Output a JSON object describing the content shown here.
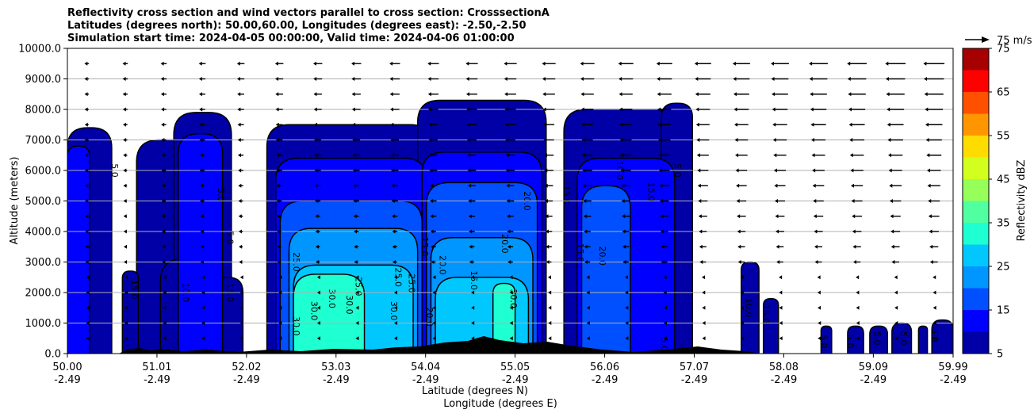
{
  "title_lines": [
    "Reflectivity cross section and wind vectors parallel to cross section: CrosssectionA",
    "Latitudes (degrees north): 50.00,60.00, Longitudes (degrees east): -2.50,-2.50",
    "Simulation start time: 2024-04-05 00:00:00, Valid time: 2024-04-06 01:00:00"
  ],
  "chart_data": {
    "type": "heatmap",
    "ylabel": "Altitude (meters)",
    "xlabel_line1": "Latitude (degrees N)",
    "xlabel_line2": "Longitude (degrees E)",
    "x_range": [
      50.0,
      59.99
    ],
    "ylim": [
      0,
      10000
    ],
    "grid": "horizontal",
    "y_ticks": [
      "10000.0",
      "9000.0",
      "8000.0",
      "7000.0",
      "6000.0",
      "5000.0",
      "4000.0",
      "3000.0",
      "2000.0",
      "1000.0",
      "0.0"
    ],
    "y_tick_values": [
      10000,
      9000,
      8000,
      7000,
      6000,
      5000,
      4000,
      3000,
      2000,
      1000,
      0
    ],
    "x_ticks": [
      {
        "value": 50.0,
        "lat": "50.00",
        "lon": "-2.49"
      },
      {
        "value": 51.01,
        "lat": "51.01",
        "lon": "-2.49"
      },
      {
        "value": 52.02,
        "lat": "52.02",
        "lon": "-2.49"
      },
      {
        "value": 53.03,
        "lat": "53.03",
        "lon": "-2.49"
      },
      {
        "value": 54.04,
        "lat": "54.04",
        "lon": "-2.49"
      },
      {
        "value": 55.05,
        "lat": "55.05",
        "lon": "-2.49"
      },
      {
        "value": 56.06,
        "lat": "56.06",
        "lon": "-2.49"
      },
      {
        "value": 57.07,
        "lat": "57.07",
        "lon": "-2.49"
      },
      {
        "value": 58.08,
        "lat": "58.08",
        "lon": "-2.49"
      },
      {
        "value": 59.09,
        "lat": "59.09",
        "lon": "-2.49"
      },
      {
        "value": 59.99,
        "lat": "59.99",
        "lon": "-2.49"
      }
    ],
    "wind_reference_label": "75 m/s",
    "colorbar": {
      "label": "Reflectivity dBZ",
      "min": 5,
      "max": 75,
      "levels": [
        5,
        10,
        15,
        20,
        25,
        30,
        35,
        40,
        45,
        50,
        55,
        60,
        65,
        70,
        75
      ],
      "tick_labels": [
        "75",
        "65",
        "55",
        "45",
        "35",
        "25",
        "15",
        "5"
      ],
      "tick_values": [
        75,
        65,
        55,
        45,
        35,
        25,
        15,
        5
      ],
      "colors": [
        "#0000a6",
        "#0000ff",
        "#0050ff",
        "#0096ff",
        "#00c8ff",
        "#1effd2",
        "#50ffa0",
        "#96ff5a",
        "#d2ff1e",
        "#ffdc00",
        "#ff9600",
        "#ff5000",
        "#ff0000",
        "#a60000"
      ]
    },
    "cells": [
      {
        "x0": 50.0,
        "x1": 50.5,
        "top": 7400,
        "level": 5
      },
      {
        "x0": 50.78,
        "x1": 51.47,
        "top": 7000,
        "level": 5
      },
      {
        "x0": 51.2,
        "x1": 51.85,
        "top": 7900,
        "level": 5
      },
      {
        "x0": 50.62,
        "x1": 50.8,
        "top": 2700,
        "level": 5
      },
      {
        "x0": 51.05,
        "x1": 51.65,
        "top": 3100,
        "level": 5
      },
      {
        "x0": 51.6,
        "x1": 51.98,
        "top": 2500,
        "level": 5
      },
      {
        "x0": 52.25,
        "x1": 54.12,
        "top": 7500,
        "level": 5
      },
      {
        "x0": 53.95,
        "x1": 55.4,
        "top": 8300,
        "level": 5
      },
      {
        "x0": 55.6,
        "x1": 57.0,
        "top": 8000,
        "level": 5
      },
      {
        "x0": 56.7,
        "x1": 57.05,
        "top": 8200,
        "level": 5
      },
      {
        "x0": 57.6,
        "x1": 57.8,
        "top": 3000,
        "level": 5
      },
      {
        "x0": 57.85,
        "x1": 58.02,
        "top": 1800,
        "level": 5
      },
      {
        "x0": 58.5,
        "x1": 58.62,
        "top": 900,
        "level": 5
      },
      {
        "x0": 58.8,
        "x1": 58.98,
        "top": 900,
        "level": 5
      },
      {
        "x0": 59.05,
        "x1": 59.25,
        "top": 900,
        "level": 5
      },
      {
        "x0": 59.3,
        "x1": 59.52,
        "top": 1000,
        "level": 5
      },
      {
        "x0": 59.6,
        "x1": 59.7,
        "top": 900,
        "level": 5
      },
      {
        "x0": 59.75,
        "x1": 59.99,
        "top": 1100,
        "level": 5
      },
      {
        "x0": 56.73,
        "x1": 56.8,
        "top": 700,
        "level": 5
      },
      {
        "x0": 52.35,
        "x1": 54.05,
        "top": 6400,
        "level": 10
      },
      {
        "x0": 54.0,
        "x1": 55.35,
        "top": 6600,
        "level": 10
      },
      {
        "x0": 55.75,
        "x1": 56.85,
        "top": 6400,
        "level": 10
      },
      {
        "x0": 51.25,
        "x1": 51.75,
        "top": 7200,
        "level": 10
      },
      {
        "x0": 50.0,
        "x1": 50.25,
        "top": 6800,
        "level": 10
      },
      {
        "x0": 52.4,
        "x1": 54.0,
        "top": 5000,
        "level": 15
      },
      {
        "x0": 54.05,
        "x1": 55.3,
        "top": 5600,
        "level": 15
      },
      {
        "x0": 55.8,
        "x1": 56.35,
        "top": 5500,
        "level": 15
      },
      {
        "x0": 52.5,
        "x1": 53.95,
        "top": 4100,
        "level": 20
      },
      {
        "x0": 54.1,
        "x1": 55.25,
        "top": 3800,
        "level": 20
      },
      {
        "x0": 52.55,
        "x1": 53.9,
        "top": 2900,
        "level": 25
      },
      {
        "x0": 54.15,
        "x1": 55.2,
        "top": 2500,
        "level": 25
      },
      {
        "x0": 52.55,
        "x1": 53.35,
        "top": 2600,
        "level": 30
      },
      {
        "x0": 54.8,
        "x1": 55.05,
        "top": 2300,
        "level": 30
      }
    ],
    "contour_labels": [
      {
        "x": 50.5,
        "y": 6000,
        "text": "5.0"
      },
      {
        "x": 51.7,
        "y": 5200,
        "text": "5.0"
      },
      {
        "x": 51.8,
        "y": 3800,
        "text": "5.0"
      },
      {
        "x": 50.72,
        "y": 2100,
        "text": "15.0"
      },
      {
        "x": 51.3,
        "y": 2000,
        "text": "10.0"
      },
      {
        "x": 51.8,
        "y": 2000,
        "text": "15.0"
      },
      {
        "x": 52.55,
        "y": 3000,
        "text": "25.0"
      },
      {
        "x": 52.55,
        "y": 900,
        "text": "30.0"
      },
      {
        "x": 52.75,
        "y": 1400,
        "text": "30.0"
      },
      {
        "x": 52.95,
        "y": 1800,
        "text": "30.0"
      },
      {
        "x": 53.15,
        "y": 1600,
        "text": "30.0"
      },
      {
        "x": 53.25,
        "y": 2200,
        "text": "25.0"
      },
      {
        "x": 53.7,
        "y": 2500,
        "text": "25.0"
      },
      {
        "x": 53.65,
        "y": 1400,
        "text": "30.0"
      },
      {
        "x": 53.85,
        "y": 2300,
        "text": "25.0"
      },
      {
        "x": 54.05,
        "y": 1200,
        "text": "20.0"
      },
      {
        "x": 54.2,
        "y": 2900,
        "text": "20.0"
      },
      {
        "x": 54.0,
        "y": 3500,
        "text": "15.0"
      },
      {
        "x": 54.55,
        "y": 2400,
        "text": "15.0"
      },
      {
        "x": 54.9,
        "y": 3600,
        "text": "20.0"
      },
      {
        "x": 55.0,
        "y": 1800,
        "text": "30.0"
      },
      {
        "x": 55.15,
        "y": 5000,
        "text": "20.0"
      },
      {
        "x": 55.6,
        "y": 5200,
        "text": "15.0"
      },
      {
        "x": 55.75,
        "y": 3300,
        "text": "15.0"
      },
      {
        "x": 56.0,
        "y": 3200,
        "text": "20.0"
      },
      {
        "x": 56.2,
        "y": 6000,
        "text": "10.0"
      },
      {
        "x": 56.55,
        "y": 5300,
        "text": "15.0"
      },
      {
        "x": 56.85,
        "y": 6000,
        "text": "5.0"
      },
      {
        "x": 57.65,
        "y": 1500,
        "text": "10.0"
      },
      {
        "x": 57.85,
        "y": 1300,
        "text": "15.0"
      },
      {
        "x": 58.5,
        "y": 400,
        "text": "5.0"
      },
      {
        "x": 58.8,
        "y": 400,
        "text": "5.0"
      },
      {
        "x": 59.1,
        "y": 500,
        "text": "5.0"
      },
      {
        "x": 59.4,
        "y": 500,
        "text": "5.0"
      },
      {
        "x": 59.75,
        "y": 600,
        "text": "5.0"
      },
      {
        "x": 56.7,
        "y": 300,
        "text": "5.0"
      }
    ],
    "wind_levels": [
      9500,
      9000,
      8500,
      8000,
      7500,
      7000,
      6500,
      6000,
      5500,
      5000,
      4500,
      4000,
      3500,
      3000,
      2500,
      2000,
      1500,
      1000,
      500
    ],
    "wind_columns": 23
  }
}
